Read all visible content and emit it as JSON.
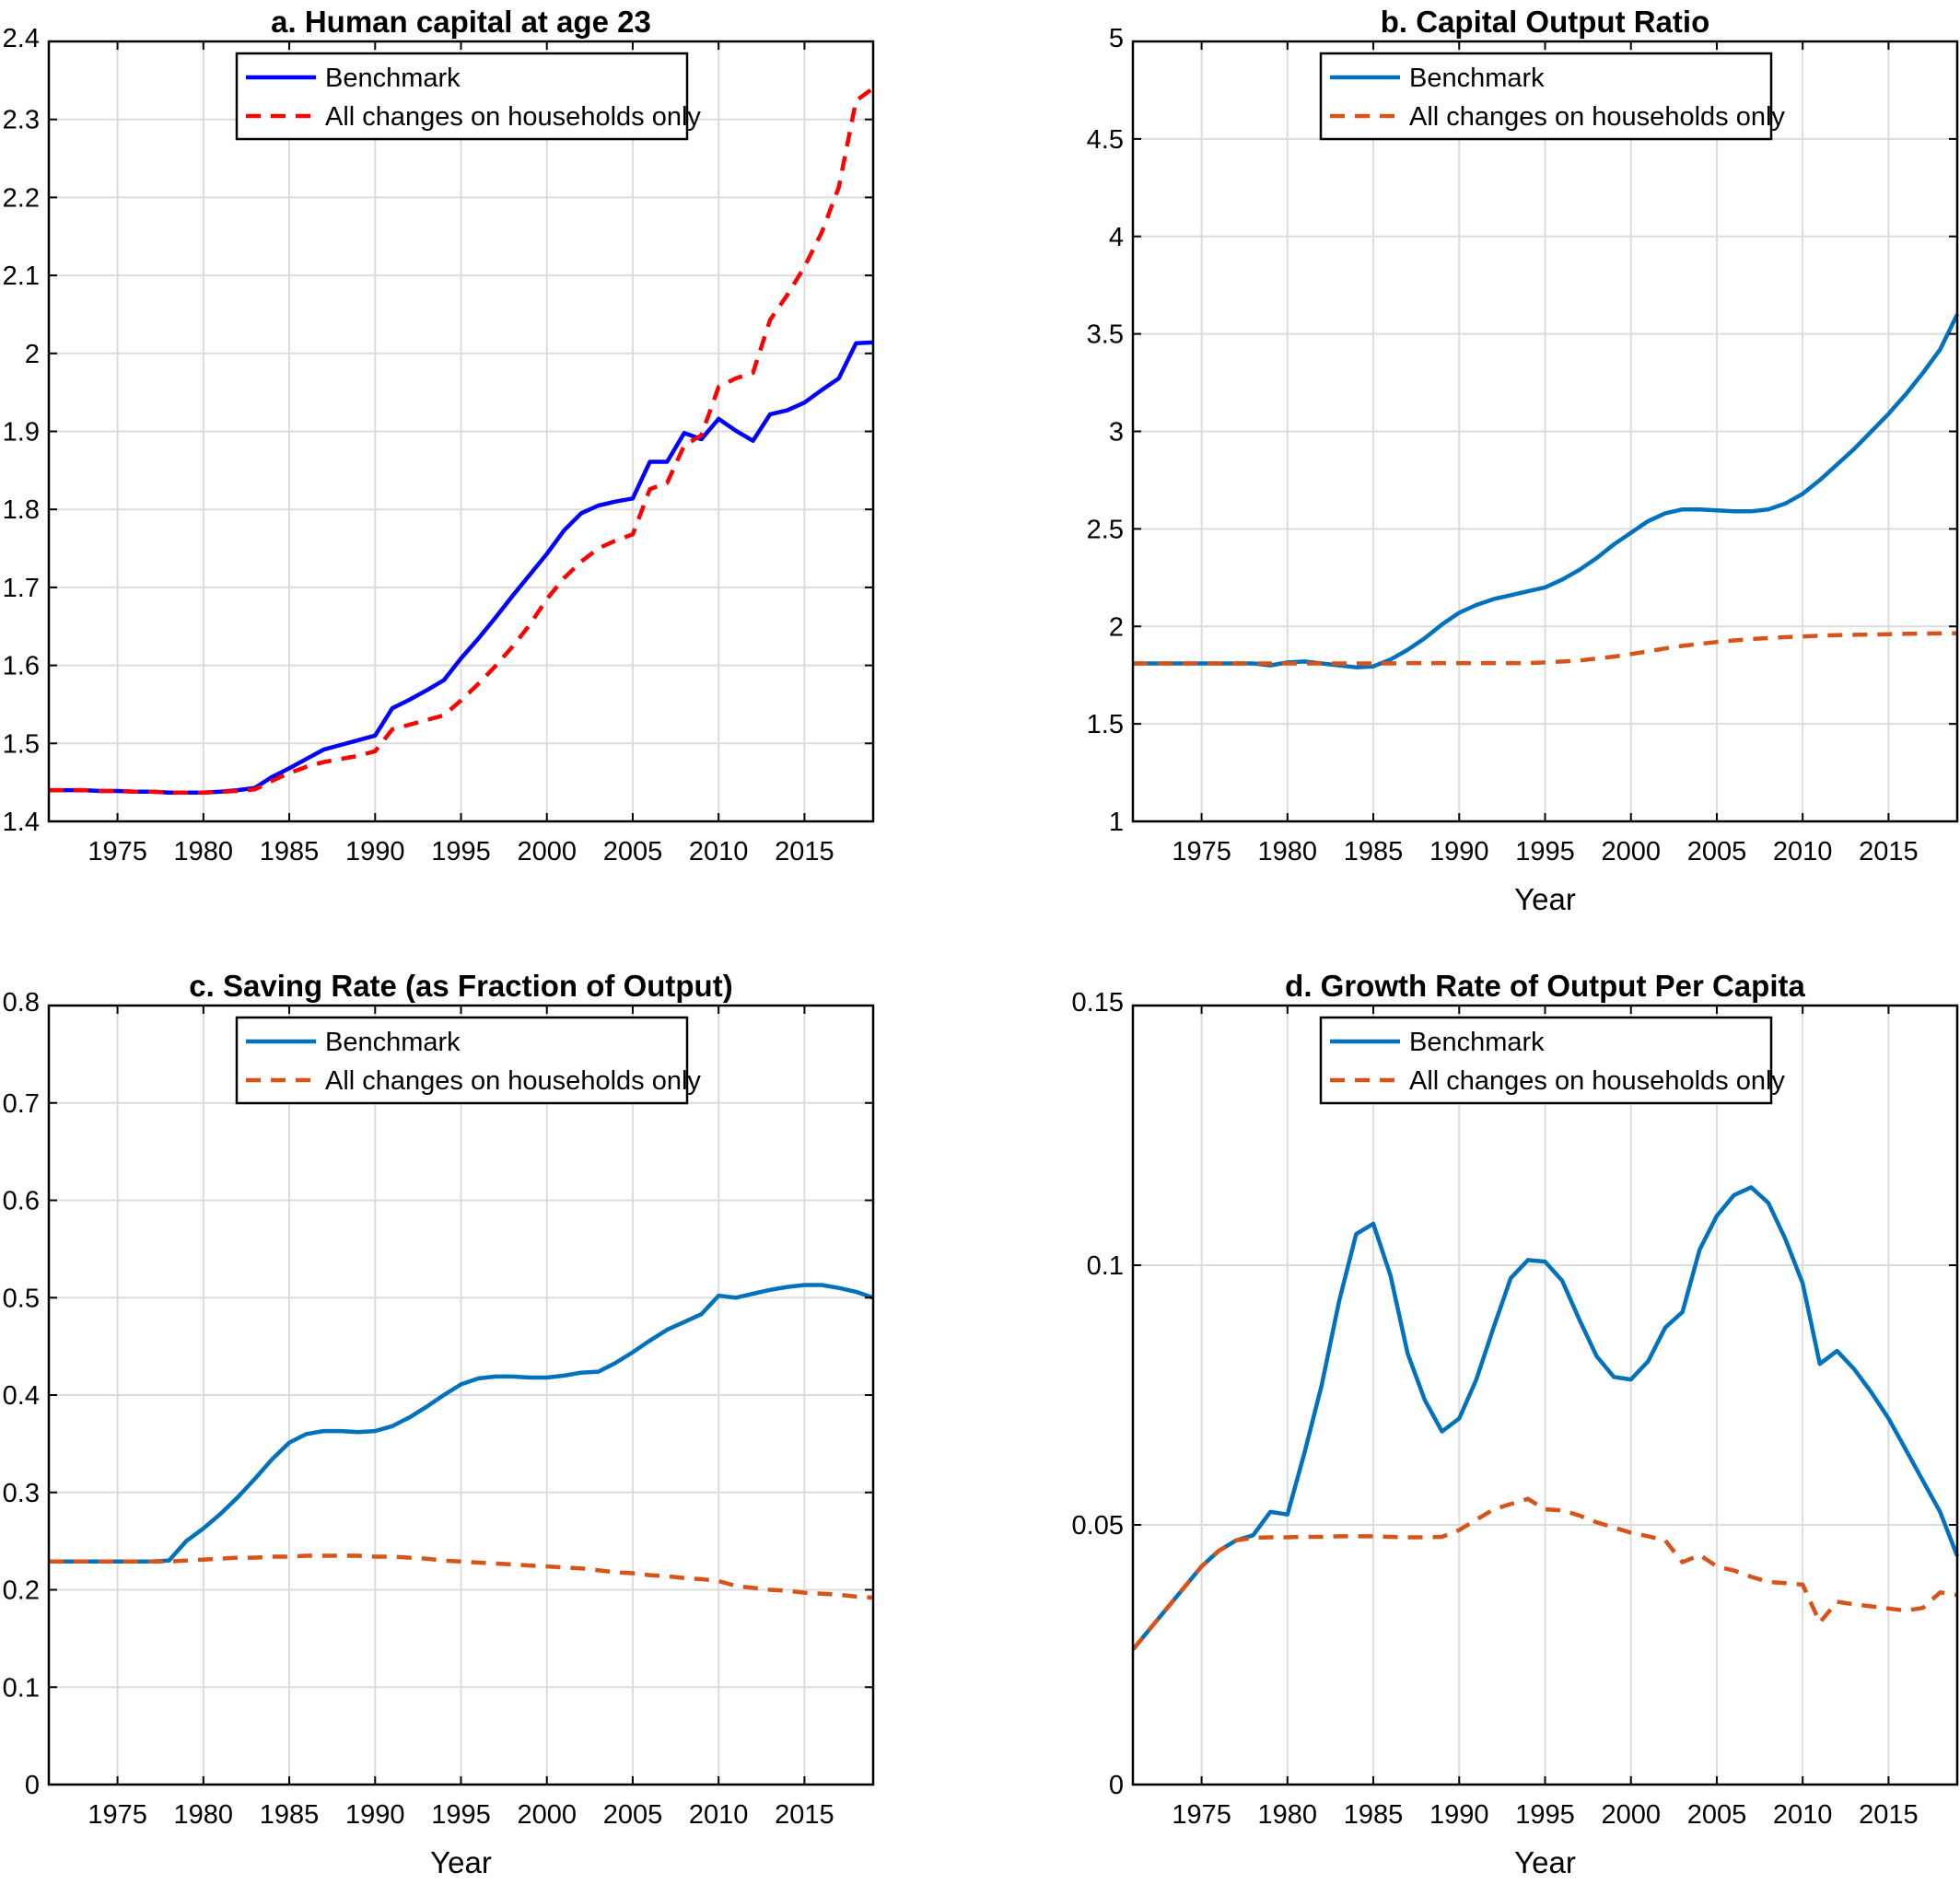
{
  "chart_data": [
    {
      "type": "line",
      "title": "a. Human capital at age 23",
      "xlabel": "",
      "ylabel": "",
      "xlim": [
        1971,
        2019
      ],
      "ylim": [
        1.4,
        2.4
      ],
      "xticks": [
        1975,
        1980,
        1985,
        1990,
        1995,
        2000,
        2005,
        2010,
        2015
      ],
      "yticks": [
        1.4,
        1.5,
        1.6,
        1.7,
        1.8,
        1.9,
        2,
        2.1,
        2.2,
        2.3,
        2.4
      ],
      "ytick_labels": [
        "1.4",
        "1.5",
        "1.6",
        "1.7",
        "1.8",
        "1.9",
        "2",
        "2.1",
        "2.2",
        "2.3",
        "2.4"
      ],
      "grid": true,
      "legend_position": "top-center",
      "series": [
        {
          "name": "Benchmark",
          "color": "#0000ff",
          "dash": "solid",
          "x": [
            1971,
            1972,
            1973,
            1974,
            1975,
            1976,
            1977,
            1978,
            1979,
            1980,
            1981,
            1982,
            1983,
            1984,
            1985,
            1986,
            1987,
            1988,
            1989,
            1990,
            1991,
            1992,
            1993,
            1994,
            1995,
            1996,
            1997,
            1998,
            1999,
            2000,
            2001,
            2002,
            2003,
            2004,
            2005,
            2006,
            2007,
            2008,
            2009,
            2010,
            2011,
            2012,
            2013,
            2014,
            2015,
            2016,
            2017,
            2018,
            2019
          ],
          "y": [
            1.44,
            1.44,
            1.44,
            1.439,
            1.439,
            1.438,
            1.438,
            1.437,
            1.437,
            1.437,
            1.438,
            1.44,
            1.443,
            1.457,
            1.468,
            1.48,
            1.492,
            1.498,
            1.504,
            1.51,
            1.545,
            1.556,
            1.568,
            1.581,
            1.609,
            1.634,
            1.661,
            1.689,
            1.716,
            1.743,
            1.773,
            1.795,
            1.805,
            1.81,
            1.814,
            1.861,
            1.861,
            1.898,
            1.89,
            1.916,
            1.901,
            1.888,
            1.922,
            1.927,
            1.937,
            1.953,
            1.968,
            2.013,
            2.014
          ]
        },
        {
          "name": "All changes on households only",
          "color": "#ff0000",
          "dash": "dashed",
          "x": [
            1971,
            1972,
            1973,
            1974,
            1975,
            1976,
            1977,
            1978,
            1979,
            1980,
            1981,
            1982,
            1983,
            1984,
            1985,
            1986,
            1987,
            1988,
            1989,
            1990,
            1991,
            1992,
            1993,
            1994,
            1995,
            1996,
            1997,
            1998,
            1999,
            2000,
            2001,
            2002,
            2003,
            2004,
            2005,
            2006,
            2007,
            2008,
            2009,
            2010,
            2011,
            2012,
            2013,
            2014,
            2015,
            2016,
            2017,
            2018,
            2019
          ],
          "y": [
            1.44,
            1.44,
            1.44,
            1.439,
            1.439,
            1.438,
            1.438,
            1.437,
            1.437,
            1.437,
            1.438,
            1.439,
            1.441,
            1.452,
            1.462,
            1.47,
            1.476,
            1.48,
            1.484,
            1.49,
            1.518,
            1.524,
            1.53,
            1.536,
            1.555,
            1.576,
            1.599,
            1.624,
            1.652,
            1.685,
            1.712,
            1.733,
            1.75,
            1.76,
            1.768,
            1.826,
            1.834,
            1.882,
            1.895,
            1.957,
            1.968,
            1.975,
            2.043,
            2.075,
            2.111,
            2.155,
            2.213,
            2.324,
            2.34
          ]
        }
      ]
    },
    {
      "type": "line",
      "title": "b. Capital Output Ratio",
      "xlabel": "Year",
      "ylabel": "",
      "xlim": [
        1971,
        2019
      ],
      "ylim": [
        1,
        5
      ],
      "xticks": [
        1975,
        1980,
        1985,
        1990,
        1995,
        2000,
        2005,
        2010,
        2015
      ],
      "yticks": [
        1,
        1.5,
        2,
        2.5,
        3,
        3.5,
        4,
        4.5,
        5
      ],
      "ytick_labels": [
        "1",
        "1.5",
        "2",
        "2.5",
        "3",
        "3.5",
        "4",
        "4.5",
        "5"
      ],
      "grid": true,
      "legend_position": "top-center",
      "series": [
        {
          "name": "Benchmark",
          "color": "#0072bd",
          "dash": "solid",
          "x": [
            1971,
            1972,
            1973,
            1974,
            1975,
            1976,
            1977,
            1978,
            1979,
            1980,
            1981,
            1982,
            1983,
            1984,
            1985,
            1986,
            1987,
            1988,
            1989,
            1990,
            1991,
            1992,
            1993,
            1994,
            1995,
            1996,
            1997,
            1998,
            1999,
            2000,
            2001,
            2002,
            2003,
            2004,
            2005,
            2006,
            2007,
            2008,
            2009,
            2010,
            2011,
            2012,
            2013,
            2014,
            2015,
            2016,
            2017,
            2018,
            2019
          ],
          "y": [
            1.81,
            1.81,
            1.81,
            1.81,
            1.81,
            1.81,
            1.81,
            1.81,
            1.8,
            1.815,
            1.82,
            1.81,
            1.8,
            1.79,
            1.795,
            1.83,
            1.88,
            1.94,
            2.01,
            2.07,
            2.11,
            2.14,
            2.16,
            2.18,
            2.2,
            2.24,
            2.29,
            2.35,
            2.42,
            2.48,
            2.54,
            2.58,
            2.6,
            2.6,
            2.595,
            2.59,
            2.59,
            2.6,
            2.63,
            2.68,
            2.75,
            2.83,
            2.91,
            3,
            3.09,
            3.19,
            3.3,
            3.42,
            3.6
          ]
        },
        {
          "name": "All changes on households only",
          "color": "#d95319",
          "dash": "dashed",
          "x": [
            1971,
            1972,
            1973,
            1974,
            1975,
            1976,
            1977,
            1978,
            1979,
            1980,
            1981,
            1982,
            1983,
            1984,
            1985,
            1986,
            1987,
            1988,
            1989,
            1990,
            1991,
            1992,
            1993,
            1994,
            1995,
            1996,
            1997,
            1998,
            1999,
            2000,
            2001,
            2002,
            2003,
            2004,
            2005,
            2006,
            2007,
            2008,
            2009,
            2010,
            2011,
            2012,
            2013,
            2014,
            2015,
            2016,
            2017,
            2018,
            2019
          ],
          "y": [
            1.81,
            1.81,
            1.81,
            1.81,
            1.81,
            1.81,
            1.81,
            1.81,
            1.81,
            1.81,
            1.81,
            1.81,
            1.81,
            1.81,
            1.81,
            1.81,
            1.812,
            1.812,
            1.812,
            1.812,
            1.812,
            1.812,
            1.812,
            1.812,
            1.815,
            1.82,
            1.825,
            1.835,
            1.845,
            1.858,
            1.872,
            1.887,
            1.9,
            1.91,
            1.92,
            1.928,
            1.935,
            1.94,
            1.945,
            1.948,
            1.952,
            1.955,
            1.957,
            1.958,
            1.96,
            1.962,
            1.963,
            1.964,
            1.965
          ]
        }
      ]
    },
    {
      "type": "line",
      "title": "c. Saving Rate (as Fraction of Output)",
      "xlabel": "Year",
      "ylabel": "",
      "xlim": [
        1971,
        2019
      ],
      "ylim": [
        0,
        0.8
      ],
      "xticks": [
        1975,
        1980,
        1985,
        1990,
        1995,
        2000,
        2005,
        2010,
        2015
      ],
      "yticks": [
        0,
        0.1,
        0.2,
        0.3,
        0.4,
        0.5,
        0.6,
        0.7,
        0.8
      ],
      "ytick_labels": [
        "0",
        "0.1",
        "0.2",
        "0.3",
        "0.4",
        "0.5",
        "0.6",
        "0.7",
        "0.8"
      ],
      "grid": true,
      "legend_position": "top-center",
      "series": [
        {
          "name": "Benchmark",
          "color": "#0072bd",
          "dash": "solid",
          "x": [
            1971,
            1972,
            1973,
            1974,
            1975,
            1976,
            1977,
            1978,
            1979,
            1980,
            1981,
            1982,
            1983,
            1984,
            1985,
            1986,
            1987,
            1988,
            1989,
            1990,
            1991,
            1992,
            1993,
            1994,
            1995,
            1996,
            1997,
            1998,
            1999,
            2000,
            2001,
            2002,
            2003,
            2004,
            2005,
            2006,
            2007,
            2008,
            2009,
            2010,
            2011,
            2012,
            2013,
            2014,
            2015,
            2016,
            2017,
            2018,
            2019
          ],
          "y": [
            0.229,
            0.229,
            0.229,
            0.229,
            0.229,
            0.229,
            0.229,
            0.23,
            0.25,
            0.263,
            0.278,
            0.295,
            0.314,
            0.334,
            0.351,
            0.36,
            0.363,
            0.363,
            0.362,
            0.363,
            0.368,
            0.377,
            0.388,
            0.4,
            0.411,
            0.417,
            0.419,
            0.419,
            0.418,
            0.418,
            0.42,
            0.423,
            0.424,
            0.433,
            0.444,
            0.456,
            0.467,
            0.475,
            0.483,
            0.502,
            0.5,
            0.504,
            0.508,
            0.511,
            0.513,
            0.513,
            0.51,
            0.506,
            0.5
          ]
        },
        {
          "name": "All changes on households only",
          "color": "#d95319",
          "dash": "dashed",
          "x": [
            1971,
            1972,
            1973,
            1974,
            1975,
            1976,
            1977,
            1978,
            1979,
            1980,
            1981,
            1982,
            1983,
            1984,
            1985,
            1986,
            1987,
            1988,
            1989,
            1990,
            1991,
            1992,
            1993,
            1994,
            1995,
            1996,
            1997,
            1998,
            1999,
            2000,
            2001,
            2002,
            2003,
            2004,
            2005,
            2006,
            2007,
            2008,
            2009,
            2010,
            2011,
            2012,
            2013,
            2014,
            2015,
            2016,
            2017,
            2018,
            2019
          ],
          "y": [
            0.229,
            0.229,
            0.229,
            0.229,
            0.229,
            0.229,
            0.229,
            0.229,
            0.23,
            0.231,
            0.232,
            0.233,
            0.233,
            0.234,
            0.234,
            0.235,
            0.235,
            0.235,
            0.235,
            0.234,
            0.234,
            0.233,
            0.232,
            0.23,
            0.229,
            0.228,
            0.227,
            0.226,
            0.225,
            0.224,
            0.223,
            0.222,
            0.22,
            0.218,
            0.217,
            0.215,
            0.214,
            0.212,
            0.211,
            0.209,
            0.204,
            0.202,
            0.2,
            0.199,
            0.197,
            0.196,
            0.195,
            0.193,
            0.192
          ]
        }
      ]
    },
    {
      "type": "line",
      "title": "d. Growth Rate of Output Per Capita",
      "xlabel": "Year",
      "ylabel": "",
      "xlim": [
        1971,
        2019
      ],
      "ylim": [
        0,
        0.15
      ],
      "xticks": [
        1975,
        1980,
        1985,
        1990,
        1995,
        2000,
        2005,
        2010,
        2015
      ],
      "yticks": [
        0,
        0.05,
        0.1,
        0.15
      ],
      "ytick_labels": [
        "0",
        "0.05",
        "0.1",
        "0.15"
      ],
      "grid": true,
      "legend_position": "top-center",
      "series": [
        {
          "name": "Benchmark",
          "color": "#0072bd",
          "dash": "solid",
          "x": [
            1971,
            1972,
            1973,
            1974,
            1975,
            1976,
            1977,
            1978,
            1979,
            1980,
            1981,
            1982,
            1983,
            1984,
            1985,
            1986,
            1987,
            1988,
            1989,
            1990,
            1991,
            1992,
            1993,
            1994,
            1995,
            1996,
            1997,
            1998,
            1999,
            2000,
            2001,
            2002,
            2003,
            2004,
            2005,
            2006,
            2007,
            2008,
            2009,
            2010,
            2011,
            2012,
            2013,
            2014,
            2015,
            2016,
            2017,
            2018,
            2019
          ],
          "y": [
            0.026,
            0.03,
            0.034,
            0.038,
            0.042,
            0.045,
            0.047,
            0.048,
            0.0525,
            0.052,
            0.064,
            0.077,
            0.093,
            0.106,
            0.108,
            0.098,
            0.083,
            0.074,
            0.068,
            0.0705,
            0.078,
            0.088,
            0.0975,
            0.101,
            0.1007,
            0.097,
            0.0895,
            0.0825,
            0.0785,
            0.078,
            0.0815,
            0.088,
            0.091,
            0.103,
            0.1095,
            0.1135,
            0.115,
            0.112,
            0.105,
            0.0965,
            0.081,
            0.0835,
            0.08,
            0.0755,
            0.0705,
            0.0645,
            0.0585,
            0.0525,
            0.044
          ]
        },
        {
          "name": "All changes on households only",
          "color": "#d95319",
          "dash": "dashed",
          "x": [
            1971,
            1972,
            1973,
            1974,
            1975,
            1976,
            1977,
            1978,
            1979,
            1980,
            1981,
            1982,
            1983,
            1984,
            1985,
            1986,
            1987,
            1988,
            1989,
            1990,
            1991,
            1992,
            1993,
            1994,
            1995,
            1996,
            1997,
            1998,
            1999,
            2000,
            2001,
            2002,
            2003,
            2004,
            2005,
            2006,
            2007,
            2008,
            2009,
            2010,
            2011,
            2012,
            2013,
            2014,
            2015,
            2016,
            2017,
            2018,
            2019
          ],
          "y": [
            0.026,
            0.03,
            0.034,
            0.038,
            0.042,
            0.045,
            0.047,
            0.0475,
            0.0476,
            0.0476,
            0.0477,
            0.0477,
            0.0478,
            0.0478,
            0.0478,
            0.0477,
            0.0476,
            0.0476,
            0.0477,
            0.049,
            0.051,
            0.053,
            0.054,
            0.055,
            0.053,
            0.0528,
            0.0518,
            0.0505,
            0.0495,
            0.0485,
            0.0478,
            0.047,
            0.0428,
            0.0442,
            0.042,
            0.0412,
            0.04,
            0.039,
            0.0388,
            0.0385,
            0.0312,
            0.0352,
            0.0347,
            0.0343,
            0.0339,
            0.0335,
            0.034,
            0.037,
            0.0365
          ]
        }
      ]
    }
  ]
}
